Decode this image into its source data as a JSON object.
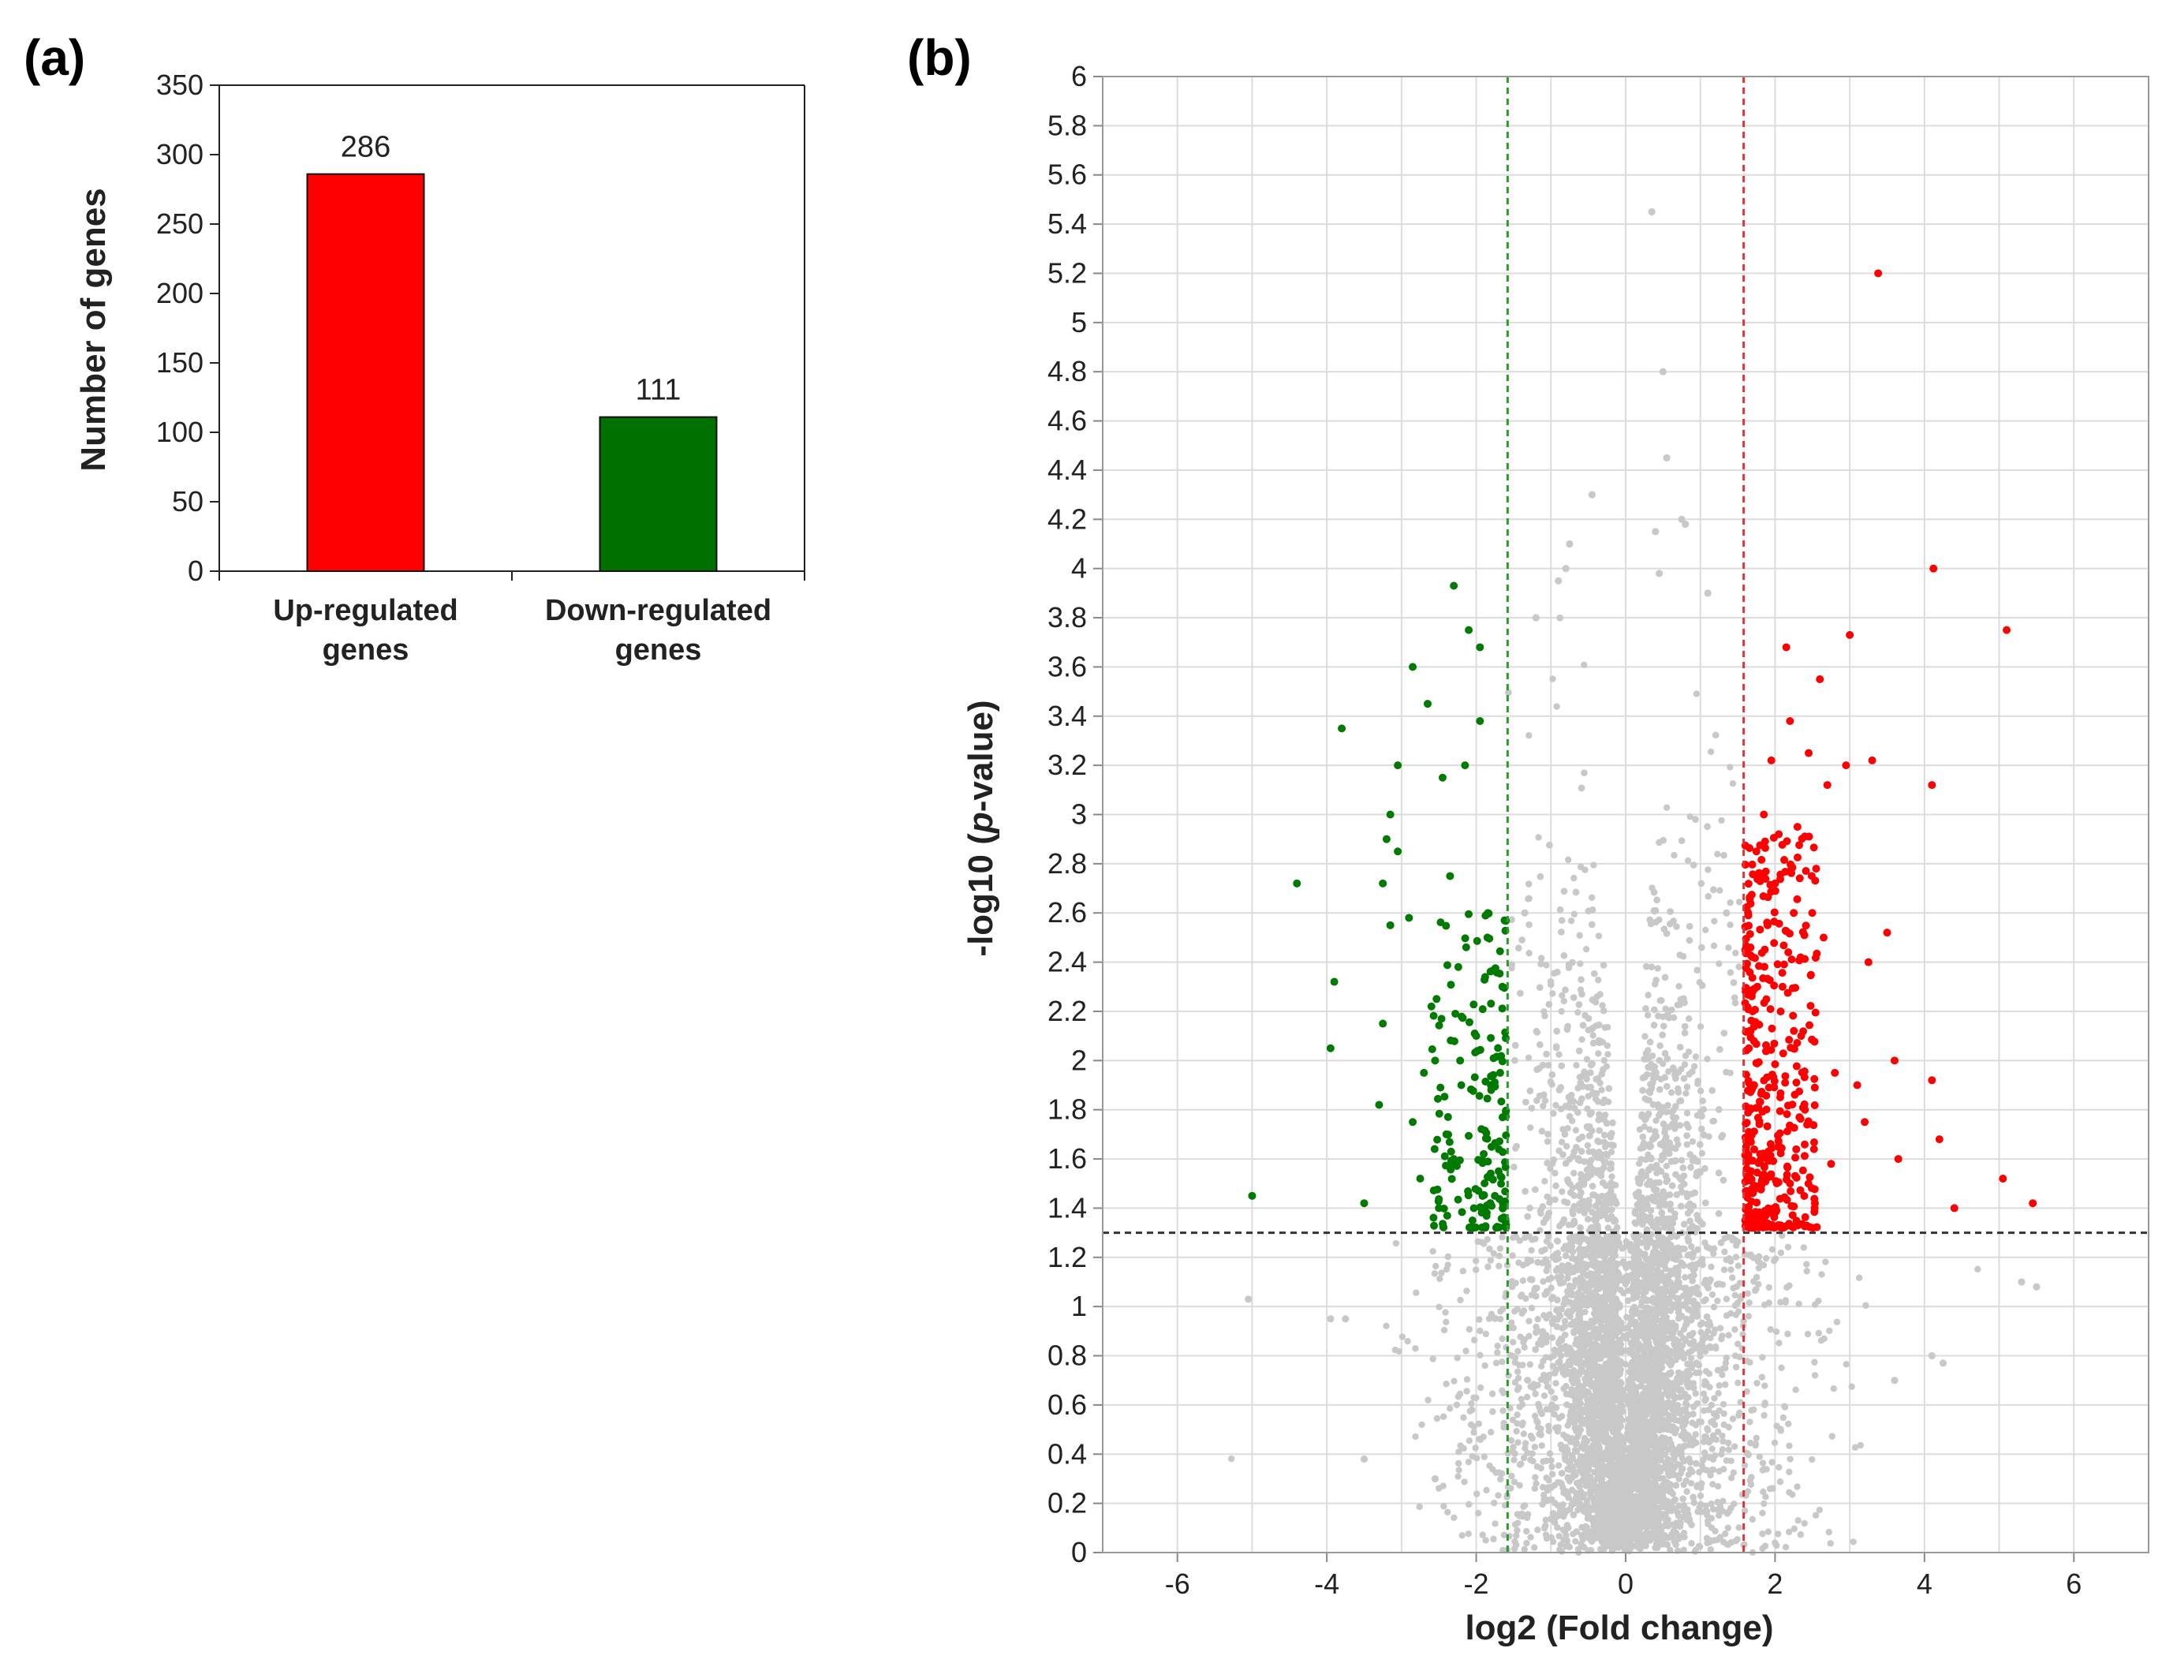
{
  "panels": {
    "a": "(a)",
    "b": "(b)"
  },
  "chart_data": [
    {
      "type": "bar",
      "categories": [
        "Up-regulated genes",
        "Down-regulated genes"
      ],
      "category_lines": [
        [
          "Up-regulated",
          "genes"
        ],
        [
          "Down-regulated",
          "genes"
        ]
      ],
      "values": [
        286,
        111
      ],
      "data_labels": [
        "286",
        "111"
      ],
      "colors": [
        "#ff0000",
        "#007000"
      ],
      "ylabel": "Number of genes",
      "ylim": [
        0,
        350
      ],
      "yticks": [
        0,
        50,
        100,
        150,
        200,
        250,
        300,
        350
      ],
      "grid": false,
      "legend": "none"
    },
    {
      "type": "scatter",
      "xlabel": "log2 (Fold change)",
      "ylabel_parts": [
        "-log10 (",
        "p",
        "-value)"
      ],
      "xlim": [
        -7,
        7
      ],
      "ylim": [
        0,
        6
      ],
      "xticks": [
        -6,
        -4,
        -2,
        0,
        2,
        4,
        6
      ],
      "yticks": [
        0,
        0.2,
        0.4,
        0.6,
        0.8,
        1,
        1.2,
        1.4,
        1.6,
        1.8,
        2,
        2.2,
        2.4,
        2.6,
        2.8,
        3,
        3.2,
        3.4,
        3.6,
        3.8,
        4,
        4.2,
        4.4,
        4.6,
        4.8,
        5,
        5.2,
        5.4,
        5.6,
        5.8,
        6
      ],
      "grid": true,
      "legend": "none",
      "threshold_lines": {
        "fold_change_down": -1.58,
        "fold_change_up": 1.58,
        "p_value": 1.3
      },
      "colors": {
        "up": "#ff0000",
        "down": "#007a00",
        "not_significant": "#c8c8c8",
        "x_threshold_up": "#e83030",
        "x_threshold_down": "#2a9a2a",
        "p_threshold": "#333333"
      },
      "series": [
        {
          "group": "up",
          "x": [
            3.38,
            4.12,
            5.1,
            3.0,
            2.15,
            2.6,
            2.2,
            1.95,
            2.45,
            2.7,
            3.3,
            2.95,
            4.1,
            1.85,
            2.05,
            2.3,
            2.0,
            1.75,
            2.55,
            2.25,
            1.9,
            2.65,
            3.5,
            3.25,
            2.1,
            1.7,
            1.65,
            3.6,
            2.8,
            3.1,
            4.1,
            4.2,
            4.4,
            5.05,
            5.45,
            3.65,
            2.4,
            2.75,
            1.8,
            2.2,
            3.2,
            1.62,
            1.6,
            1.68,
            1.72,
            2.35
          ],
          "y": [
            5.2,
            4.0,
            3.75,
            3.73,
            3.68,
            3.55,
            3.38,
            3.22,
            3.25,
            3.12,
            3.22,
            3.2,
            3.12,
            3.0,
            2.92,
            2.95,
            2.72,
            2.85,
            2.78,
            2.6,
            2.55,
            2.5,
            2.52,
            2.4,
            2.3,
            2.2,
            2.05,
            2.0,
            1.95,
            1.9,
            1.92,
            1.68,
            1.4,
            1.52,
            1.42,
            1.6,
            1.8,
            1.58,
            1.62,
            1.5,
            1.75,
            1.45,
            1.35,
            1.55,
            1.9,
            2.1
          ]
        },
        {
          "group": "down",
          "x": [
            -2.3,
            -2.1,
            -1.95,
            -2.85,
            -2.65,
            -1.95,
            -3.8,
            -3.05,
            -3.15,
            -2.45,
            -2.15,
            -3.2,
            -3.25,
            -4.4,
            -3.05,
            -2.35,
            -3.15,
            -3.9,
            -2.9,
            -2.6,
            -3.95,
            -3.25,
            -2.55,
            -3.3,
            -2.7,
            -2.85,
            -5.0,
            -3.5,
            -2.75,
            -2.4,
            -1.9,
            -1.8,
            -1.7,
            -2.2,
            -2.0,
            -1.65,
            -1.75,
            -2.05,
            -2.5,
            -1.85,
            -2.3,
            -1.62,
            -1.68
          ],
          "y": [
            3.93,
            3.75,
            3.68,
            3.6,
            3.45,
            3.38,
            3.35,
            3.2,
            3.0,
            3.15,
            3.2,
            2.9,
            2.72,
            2.72,
            2.85,
            2.75,
            2.55,
            2.32,
            2.58,
            2.22,
            2.05,
            2.15,
            2.0,
            1.82,
            1.95,
            1.75,
            1.45,
            1.42,
            1.52,
            1.7,
            1.62,
            1.88,
            1.55,
            1.9,
            2.1,
            2.3,
            1.45,
            1.35,
            1.4,
            2.5,
            1.6,
            1.35,
            1.95
          ]
        },
        {
          "group": "not_significant",
          "x": [
            0.35,
            0.5,
            0.55,
            -0.45,
            0.75,
            0.8,
            -0.75,
            -0.8,
            -0.9,
            0.4,
            0.45,
            -1.2,
            1.1,
            -5.05,
            -3.95,
            -3.75,
            5.3,
            5.5,
            4.25,
            4.1,
            3.6,
            -3.5,
            -2.55,
            -1.35,
            1.35
          ],
          "y": [
            5.45,
            4.8,
            4.45,
            4.3,
            4.2,
            4.18,
            4.1,
            4.0,
            3.95,
            4.15,
            3.98,
            3.8,
            3.9,
            1.03,
            0.95,
            0.95,
            1.1,
            1.08,
            0.77,
            0.8,
            0.7,
            0.38,
            0.3,
            2.6,
            2.6
          ]
        }
      ]
    }
  ]
}
